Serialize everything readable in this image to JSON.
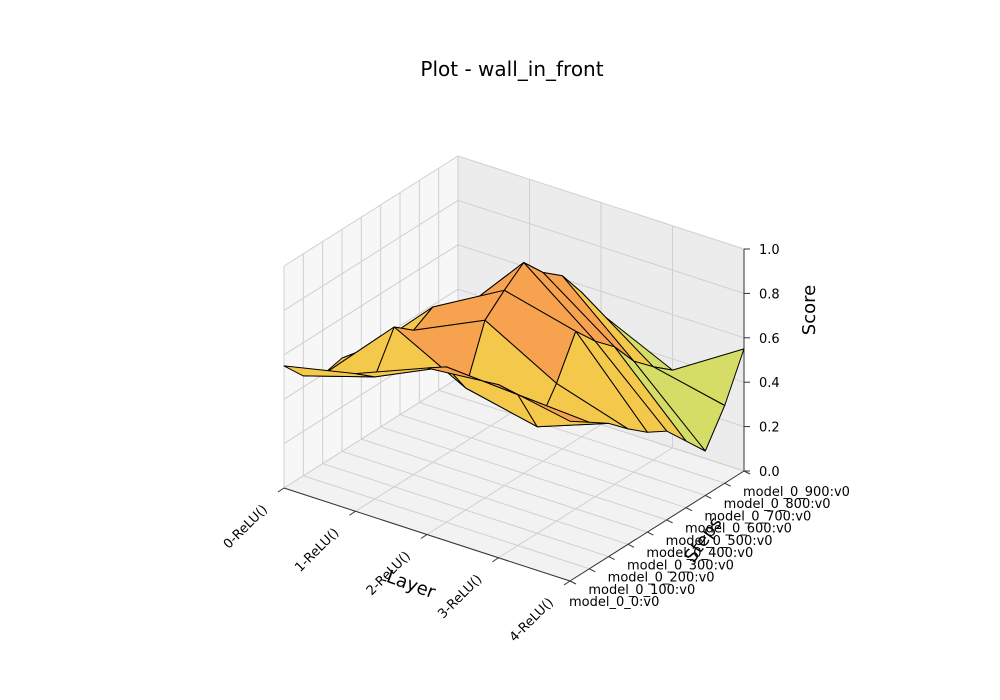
{
  "chart_data": {
    "type": "surface3d",
    "title": "Plot - wall_in_front",
    "xlabel": "Layer",
    "ylabel": "Steps",
    "zlabel": "Score",
    "x_categories": [
      "0-ReLU()",
      "1-ReLU()",
      "2-ReLU()",
      "3-ReLU()",
      "4-ReLU()"
    ],
    "y_categories": [
      "model_0_0:v0",
      "model_0_100:v0",
      "model_0_200:v0",
      "model_0_300:v0",
      "model_0_400:v0",
      "model_0_500:v0",
      "model_0_600:v0",
      "model_0_700:v0",
      "model_0_800:v0",
      "model_0_900:v0"
    ],
    "zlim": [
      0.0,
      1.0
    ],
    "z_ticks": [
      "0.0",
      "0.2",
      "0.4",
      "0.6",
      "0.8",
      "1.0"
    ],
    "grid": true,
    "colormap": [
      "#8fd9c4",
      "#9edc8c",
      "#d6dd66",
      "#f4c84a",
      "#f7a24f",
      "#e8735a"
    ],
    "z_values": [
      [
        0.55,
        0.62,
        0.75,
        0.78,
        0.72
      ],
      [
        0.45,
        0.55,
        0.7,
        0.68,
        0.66
      ],
      [
        0.4,
        0.72,
        0.55,
        0.48,
        0.6
      ],
      [
        0.42,
        0.65,
        0.8,
        0.62,
        0.52
      ],
      [
        0.38,
        0.7,
        0.88,
        0.8,
        0.45
      ],
      [
        0.35,
        0.6,
        0.95,
        0.7,
        0.4
      ],
      [
        0.3,
        0.5,
        0.85,
        0.62,
        0.3
      ],
      [
        0.28,
        0.55,
        0.78,
        0.5,
        0.2
      ],
      [
        0.25,
        0.48,
        0.65,
        0.42,
        0.35
      ],
      [
        0.2,
        0.4,
        0.5,
        0.35,
        0.55
      ]
    ]
  }
}
